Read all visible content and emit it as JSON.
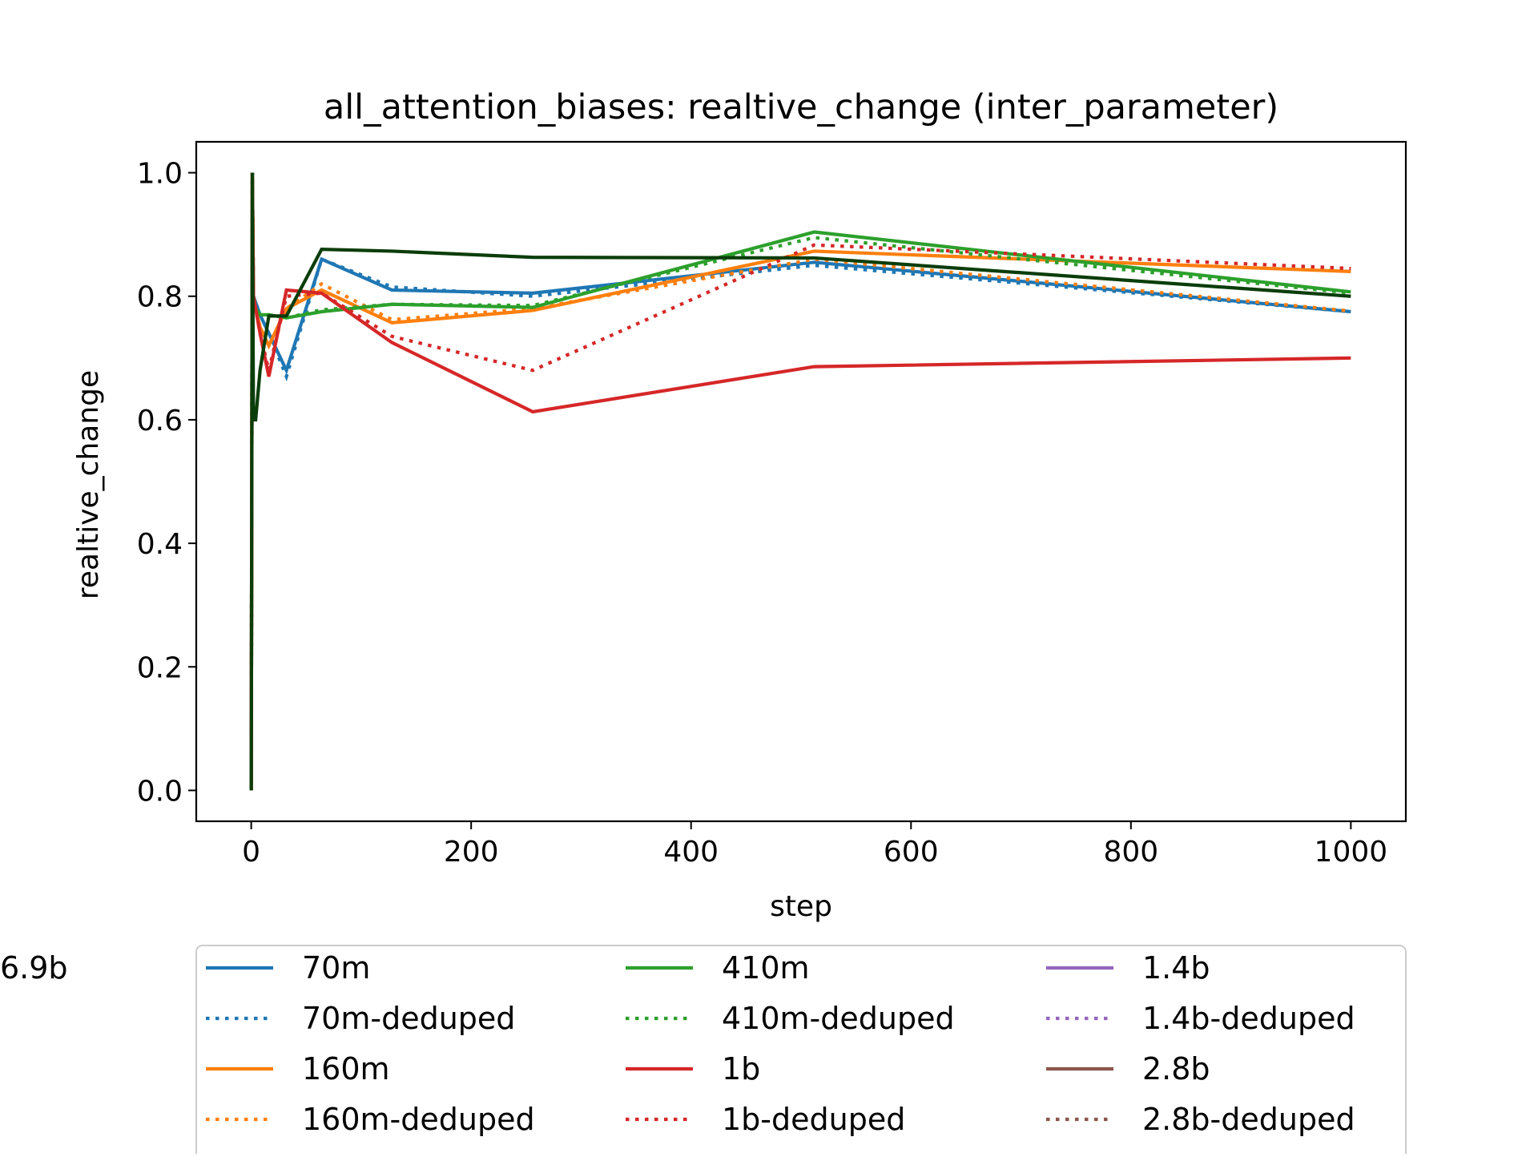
{
  "chart_data": {
    "type": "line",
    "title": "all_attention_biases: realtive_change (inter_parameter)",
    "xlabel": "step",
    "ylabel": "realtive_change",
    "xlim": [
      -50,
      1050
    ],
    "ylim": [
      -0.05,
      1.05
    ],
    "x_ticks": [
      0,
      200,
      400,
      600,
      800,
      1000
    ],
    "y_ticks": [
      0.0,
      0.2,
      0.4,
      0.6,
      0.8,
      1.0
    ],
    "x_tick_labels": [
      "0",
      "200",
      "400",
      "600",
      "800",
      "1000"
    ],
    "y_tick_labels": [
      "0.0",
      "0.2",
      "0.4",
      "0.6",
      "0.8",
      "1.0"
    ],
    "grid": false,
    "legend_position": "bottom-center",
    "legend_columns": 3,
    "series": [
      {
        "name": "70m",
        "color": "#1f77b4",
        "style": "solid",
        "x": [
          0,
          1,
          2,
          4,
          8,
          16,
          32,
          64,
          128,
          256,
          512,
          1000
        ],
        "y": [
          0.0,
          1.0,
          0.8,
          0.79,
          0.77,
          0.74,
          0.68,
          0.86,
          0.81,
          0.805,
          0.855,
          0.775
        ]
      },
      {
        "name": "70m-deduped",
        "color": "#1f77b4",
        "style": "dotted",
        "x": [
          0,
          1,
          2,
          4,
          8,
          16,
          32,
          64,
          128,
          256,
          512,
          1000
        ],
        "y": [
          0.0,
          1.0,
          0.8,
          0.79,
          0.77,
          0.74,
          0.67,
          0.86,
          0.815,
          0.8,
          0.85,
          0.775
        ]
      },
      {
        "name": "160m",
        "color": "#ff7f0e",
        "style": "solid",
        "x": [
          0,
          1,
          2,
          4,
          8,
          16,
          32,
          64,
          128,
          256,
          512,
          1000
        ],
        "y": [
          0.0,
          1.0,
          0.8,
          0.78,
          0.75,
          0.72,
          0.78,
          0.81,
          0.757,
          0.777,
          0.873,
          0.84
        ]
      },
      {
        "name": "160m-deduped",
        "color": "#ff7f0e",
        "style": "dotted",
        "x": [
          0,
          1,
          2,
          4,
          8,
          16,
          32,
          64,
          128,
          256,
          512,
          1000
        ],
        "y": [
          0.0,
          1.0,
          0.8,
          0.78,
          0.75,
          0.72,
          0.78,
          0.82,
          0.762,
          0.78,
          0.86,
          0.776
        ]
      },
      {
        "name": "410m",
        "color": "#2ca02c",
        "style": "solid",
        "x": [
          0,
          1,
          2,
          4,
          8,
          16,
          32,
          64,
          128,
          256,
          512,
          1000
        ],
        "y": [
          0.0,
          1.0,
          0.8,
          0.78,
          0.77,
          0.77,
          0.765,
          0.775,
          0.787,
          0.782,
          0.904,
          0.807
        ]
      },
      {
        "name": "410m-deduped",
        "color": "#2ca02c",
        "style": "dotted",
        "x": [
          0,
          1,
          2,
          4,
          8,
          16,
          32,
          64,
          128,
          256,
          512,
          1000
        ],
        "y": [
          0.0,
          1.0,
          0.8,
          0.78,
          0.77,
          0.77,
          0.765,
          0.778,
          0.787,
          0.785,
          0.895,
          0.805
        ]
      },
      {
        "name": "1b",
        "color": "#d62728",
        "style": "solid",
        "x": [
          0,
          1,
          2,
          4,
          8,
          16,
          32,
          64,
          128,
          256,
          512,
          1000
        ],
        "y": [
          0.0,
          1.0,
          0.8,
          0.78,
          0.74,
          0.67,
          0.81,
          0.805,
          0.725,
          0.613,
          0.686,
          0.7
        ]
      },
      {
        "name": "1b-deduped",
        "color": "#d62728",
        "style": "dotted",
        "x": [
          0,
          1,
          2,
          4,
          8,
          16,
          32,
          64,
          128,
          256,
          512,
          1000
        ],
        "y": [
          0.0,
          1.0,
          0.8,
          0.78,
          0.74,
          0.68,
          0.8,
          0.805,
          0.735,
          0.68,
          0.883,
          0.845
        ]
      },
      {
        "name": "1.4b",
        "color": "#9467bd",
        "style": "solid",
        "x": [],
        "y": []
      },
      {
        "name": "1.4b-deduped",
        "color": "#9467bd",
        "style": "dotted",
        "x": [],
        "y": []
      },
      {
        "name": "2.8b",
        "color": "#8c564b",
        "style": "solid",
        "x": [],
        "y": []
      },
      {
        "name": "2.8b-deduped",
        "color": "#8c564b",
        "style": "dotted",
        "x": [],
        "y": []
      },
      {
        "name": "6.9b",
        "color": "#0a3d0a",
        "style": "solid",
        "x": [
          0,
          1,
          2,
          4,
          8,
          16,
          32,
          64,
          128,
          256,
          512,
          1000
        ],
        "y": [
          0.0,
          1.0,
          0.6,
          0.6,
          0.68,
          0.768,
          0.768,
          0.876,
          0.873,
          0.863,
          0.862,
          0.8
        ]
      }
    ]
  }
}
